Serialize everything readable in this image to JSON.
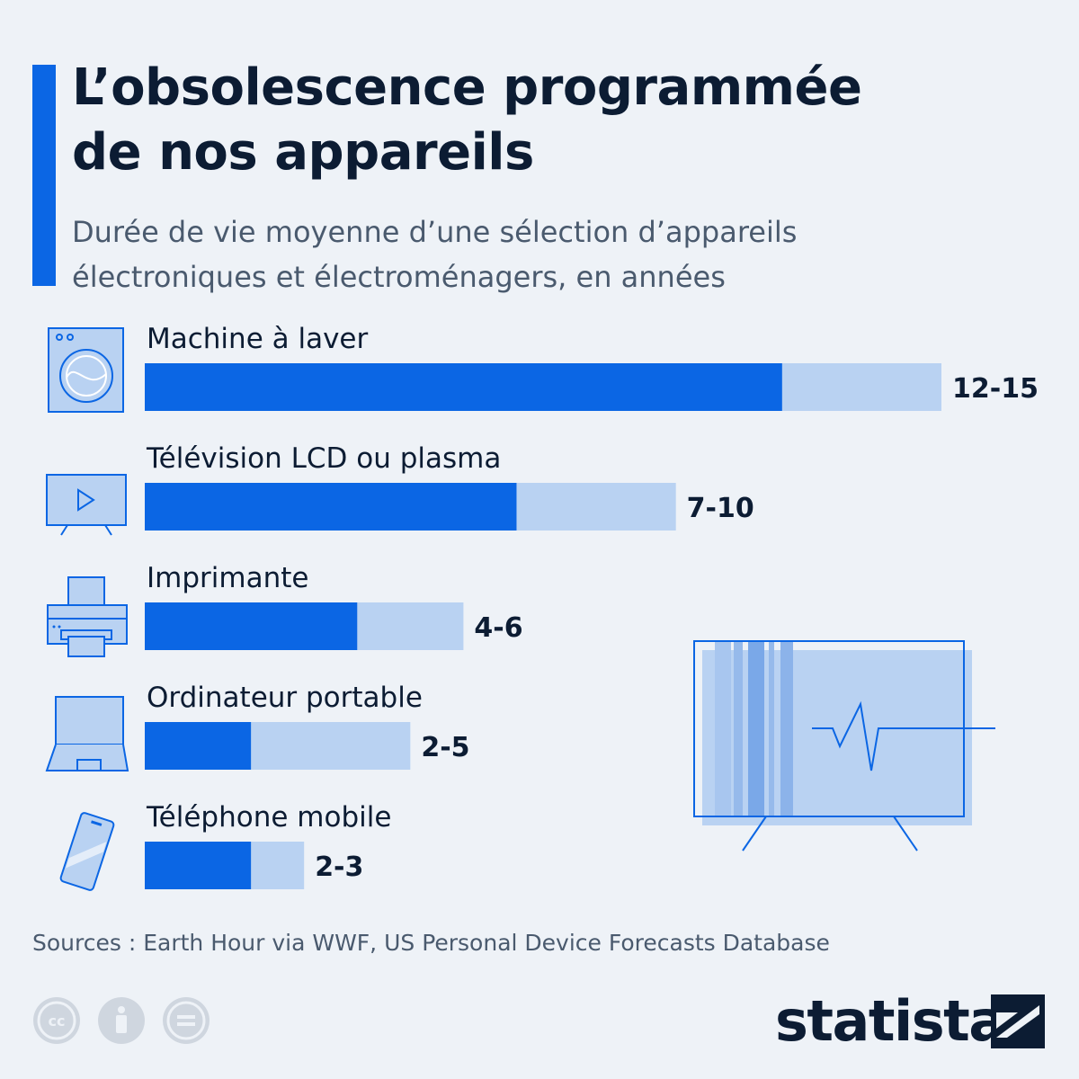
{
  "header": {
    "title_lines": [
      "L’obsolescence programmée",
      "de nos appareils"
    ],
    "subtitle_lines": [
      "Durée de vie moyenne d’une sélection d’appareils",
      "électroniques et électroménagers, en années"
    ]
  },
  "chart_data": {
    "type": "bar",
    "orientation": "horizontal",
    "title": "L’obsolescence programmée de nos appareils",
    "subtitle": "Durée de vie moyenne d’une sélection d’appareils électroniques et électroménagers, en années",
    "categories": [
      "Machine à laver",
      "Télévision LCD ou plasma",
      "Imprimante",
      "Ordinateur portable",
      "Téléphone mobile"
    ],
    "ranges": [
      {
        "low": 12,
        "high": 15
      },
      {
        "low": 7,
        "high": 10
      },
      {
        "low": 4,
        "high": 6
      },
      {
        "low": 2,
        "high": 5
      },
      {
        "low": 2,
        "high": 3
      }
    ],
    "data_labels": [
      "12-15",
      "7-10",
      "4-6",
      "2-5",
      "2-3"
    ],
    "xlim": [
      0,
      15
    ],
    "icons": [
      "washing-machine-icon",
      "television-icon",
      "printer-icon",
      "laptop-icon",
      "mobile-phone-icon"
    ],
    "colors": {
      "low": "#0b66e4",
      "high": "#b9d2f2",
      "text": "#0c1c33"
    }
  },
  "illustration": {
    "name": "broken-television-illustration"
  },
  "footer": {
    "sources": "Sources : Earth Hour via WWF, US Personal Device Forecasts Database",
    "license_icons": [
      "cc-icon",
      "attribution-icon",
      "no-derivatives-icon"
    ],
    "brand": "statista"
  },
  "colors": {
    "background": "#eef2f7",
    "accent": "#0b66e4",
    "title": "#0c1c33",
    "muted": "#4a5a6e"
  }
}
